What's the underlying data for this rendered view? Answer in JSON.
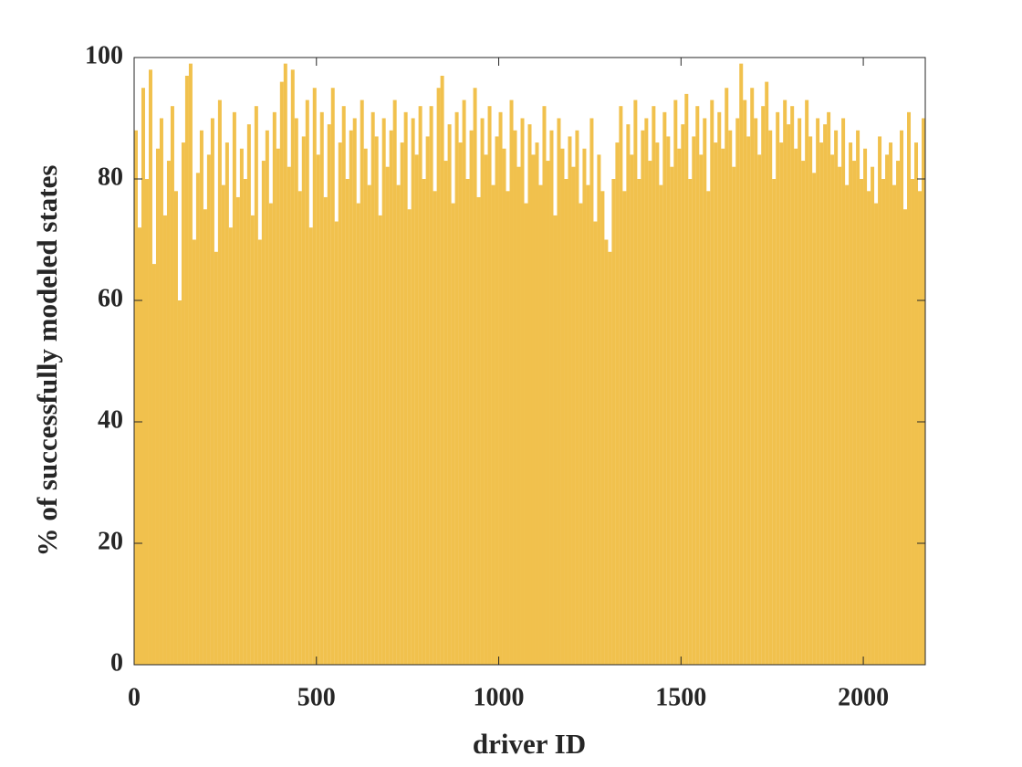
{
  "chart_data": {
    "type": "bar",
    "x_label": "driver ID",
    "y_label": "% of successfully modeled states",
    "color": "#EDB120",
    "xlim": [
      0,
      2170
    ],
    "xticks": [
      0,
      500,
      1000,
      1500,
      2000
    ],
    "ylim": [
      0,
      100
    ],
    "yticks": [
      0,
      20,
      40,
      60,
      80,
      100
    ],
    "bar_width": 10,
    "x": [
      5,
      15,
      25,
      35,
      45,
      55,
      65,
      75,
      85,
      95,
      105,
      115,
      125,
      135,
      145,
      155,
      165,
      175,
      185,
      195,
      205,
      215,
      225,
      235,
      245,
      255,
      265,
      275,
      285,
      295,
      305,
      315,
      325,
      335,
      345,
      355,
      365,
      375,
      385,
      395,
      405,
      415,
      425,
      435,
      445,
      455,
      465,
      475,
      485,
      495,
      505,
      515,
      525,
      535,
      545,
      555,
      565,
      575,
      585,
      595,
      605,
      615,
      625,
      635,
      645,
      655,
      665,
      675,
      685,
      695,
      705,
      715,
      725,
      735,
      745,
      755,
      765,
      775,
      785,
      795,
      805,
      815,
      825,
      835,
      845,
      855,
      865,
      875,
      885,
      895,
      905,
      915,
      925,
      935,
      945,
      955,
      965,
      975,
      985,
      995,
      1005,
      1015,
      1025,
      1035,
      1045,
      1055,
      1065,
      1075,
      1085,
      1095,
      1105,
      1115,
      1125,
      1135,
      1145,
      1155,
      1165,
      1175,
      1185,
      1195,
      1205,
      1215,
      1225,
      1235,
      1245,
      1255,
      1265,
      1275,
      1285,
      1295,
      1305,
      1315,
      1325,
      1335,
      1345,
      1355,
      1365,
      1375,
      1385,
      1395,
      1405,
      1415,
      1425,
      1435,
      1445,
      1455,
      1465,
      1475,
      1485,
      1495,
      1505,
      1515,
      1525,
      1535,
      1545,
      1555,
      1565,
      1575,
      1585,
      1595,
      1605,
      1615,
      1625,
      1635,
      1645,
      1655,
      1665,
      1675,
      1685,
      1695,
      1705,
      1715,
      1725,
      1735,
      1745,
      1755,
      1765,
      1775,
      1785,
      1795,
      1805,
      1815,
      1825,
      1835,
      1845,
      1855,
      1865,
      1875,
      1885,
      1895,
      1905,
      1915,
      1925,
      1935,
      1945,
      1955,
      1965,
      1975,
      1985,
      1995,
      2005,
      2015,
      2025,
      2035,
      2045,
      2055,
      2065,
      2075,
      2085,
      2095,
      2105,
      2115,
      2125,
      2135,
      2145,
      2155,
      2165
    ],
    "values": [
      88,
      72,
      95,
      80,
      98,
      66,
      85,
      90,
      74,
      83,
      92,
      78,
      60,
      86,
      97,
      99,
      70,
      81,
      88,
      75,
      84,
      90,
      68,
      93,
      79,
      86,
      72,
      91,
      77,
      85,
      80,
      89,
      74,
      92,
      70,
      83,
      88,
      76,
      91,
      85,
      96,
      99,
      82,
      98,
      90,
      78,
      87,
      93,
      72,
      95,
      84,
      91,
      77,
      89,
      95,
      73,
      86,
      92,
      80,
      88,
      90,
      76,
      93,
      85,
      79,
      91,
      87,
      74,
      90,
      82,
      88,
      93,
      79,
      86,
      91,
      75,
      90,
      84,
      92,
      80,
      87,
      92,
      78,
      95,
      97,
      83,
      89,
      76,
      91,
      86,
      93,
      80,
      88,
      95,
      77,
      90,
      84,
      92,
      79,
      87,
      91,
      85,
      78,
      93,
      88,
      82,
      90,
      76,
      89,
      84,
      86,
      79,
      92,
      83,
      88,
      74,
      90,
      85,
      80,
      87,
      82,
      88,
      76,
      85,
      79,
      90,
      73,
      84,
      78,
      70,
      68,
      80,
      86,
      92,
      78,
      89,
      84,
      93,
      80,
      88,
      90,
      83,
      92,
      86,
      79,
      91,
      87,
      82,
      93,
      85,
      89,
      94,
      80,
      87,
      92,
      84,
      90,
      78,
      93,
      86,
      91,
      85,
      95,
      88,
      82,
      90,
      99,
      93,
      87,
      95,
      90,
      84,
      92,
      96,
      88,
      80,
      91,
      86,
      93,
      89,
      92,
      85,
      90,
      83,
      93,
      87,
      81,
      90,
      86,
      89,
      91,
      84,
      88,
      82,
      90,
      79,
      86,
      83,
      88,
      80,
      85,
      78,
      82,
      76,
      87,
      80,
      84,
      86,
      79,
      83,
      88,
      75,
      91,
      80,
      86,
      78,
      90
    ]
  }
}
